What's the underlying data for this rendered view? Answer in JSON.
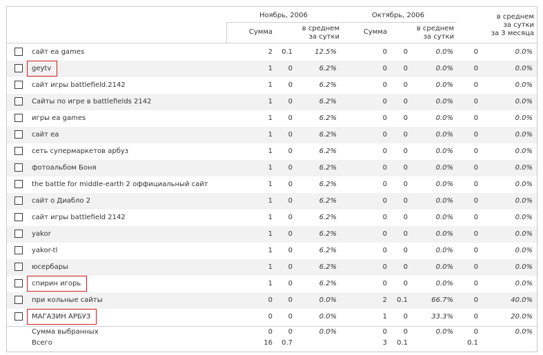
{
  "header": {
    "period1": "Ноябрь, 2006",
    "period2": "Октябрь, 2006",
    "sum_label": "Сумма",
    "avg_line1": "в среднем",
    "avg_line2": "за сутки",
    "q_line1": "в среднем",
    "q_line2": "за сутки",
    "q_line3": "за 3 месяца"
  },
  "rows": [
    {
      "keyword": "сайт ea games",
      "n_sum": "2",
      "n_avg": "0.1",
      "n_pct": "12.5%",
      "o_sum": "0",
      "o_avg": "0",
      "o_pct": "0.0%",
      "q_avg": "0",
      "q_pct": "0.0%",
      "highlighted": false
    },
    {
      "keyword": "geytv",
      "n_sum": "1",
      "n_avg": "0",
      "n_pct": "6.2%",
      "o_sum": "0",
      "o_avg": "0",
      "o_pct": "0.0%",
      "q_avg": "0",
      "q_pct": "0.0%",
      "highlighted": true
    },
    {
      "keyword": "сайт игры battlefield.2142",
      "n_sum": "1",
      "n_avg": "0",
      "n_pct": "6.2%",
      "o_sum": "0",
      "o_avg": "0",
      "o_pct": "0.0%",
      "q_avg": "0",
      "q_pct": "0.0%",
      "highlighted": false
    },
    {
      "keyword": "Сайты по игре в battlefields 2142",
      "n_sum": "1",
      "n_avg": "0",
      "n_pct": "6.2%",
      "o_sum": "0",
      "o_avg": "0",
      "o_pct": "0.0%",
      "q_avg": "0",
      "q_pct": "0.0%",
      "highlighted": false
    },
    {
      "keyword": "игры ea games",
      "n_sum": "1",
      "n_avg": "0",
      "n_pct": "6.2%",
      "o_sum": "0",
      "o_avg": "0",
      "o_pct": "0.0%",
      "q_avg": "0",
      "q_pct": "0.0%",
      "highlighted": false
    },
    {
      "keyword": "сайт ea",
      "n_sum": "1",
      "n_avg": "0",
      "n_pct": "6.2%",
      "o_sum": "0",
      "o_avg": "0",
      "o_pct": "0.0%",
      "q_avg": "0",
      "q_pct": "0.0%",
      "highlighted": false
    },
    {
      "keyword": "сеть супермаркетов арбуз",
      "n_sum": "1",
      "n_avg": "0",
      "n_pct": "6.2%",
      "o_sum": "0",
      "o_avg": "0",
      "o_pct": "0.0%",
      "q_avg": "0",
      "q_pct": "0.0%",
      "highlighted": false
    },
    {
      "keyword": "фотоальбом Боня",
      "n_sum": "1",
      "n_avg": "0",
      "n_pct": "6.2%",
      "o_sum": "0",
      "o_avg": "0",
      "o_pct": "0.0%",
      "q_avg": "0",
      "q_pct": "0.0%",
      "highlighted": false
    },
    {
      "keyword": "the battle for middle-earth 2 оффициальный сайт",
      "n_sum": "1",
      "n_avg": "0",
      "n_pct": "6.2%",
      "o_sum": "0",
      "o_avg": "0",
      "o_pct": "0.0%",
      "q_avg": "0",
      "q_pct": "0.0%",
      "highlighted": false
    },
    {
      "keyword": "сайт о Диабло 2",
      "n_sum": "1",
      "n_avg": "0",
      "n_pct": "6.2%",
      "o_sum": "0",
      "o_avg": "0",
      "o_pct": "0.0%",
      "q_avg": "0",
      "q_pct": "0.0%",
      "highlighted": false
    },
    {
      "keyword": "сайт игры battlefield 2142",
      "n_sum": "1",
      "n_avg": "0",
      "n_pct": "6.2%",
      "o_sum": "0",
      "o_avg": "0",
      "o_pct": "0.0%",
      "q_avg": "0",
      "q_pct": "0.0%",
      "highlighted": false
    },
    {
      "keyword": "yakor",
      "n_sum": "1",
      "n_avg": "0",
      "n_pct": "6.2%",
      "o_sum": "0",
      "o_avg": "0",
      "o_pct": "0.0%",
      "q_avg": "0",
      "q_pct": "0.0%",
      "highlighted": false
    },
    {
      "keyword": "yakor-tl",
      "n_sum": "1",
      "n_avg": "0",
      "n_pct": "6.2%",
      "o_sum": "0",
      "o_avg": "0",
      "o_pct": "0.0%",
      "q_avg": "0",
      "q_pct": "0.0%",
      "highlighted": false
    },
    {
      "keyword": "юсербары",
      "n_sum": "1",
      "n_avg": "0",
      "n_pct": "6.2%",
      "o_sum": "0",
      "o_avg": "0",
      "o_pct": "0.0%",
      "q_avg": "0",
      "q_pct": "0.0%",
      "highlighted": false
    },
    {
      "keyword": "спирин игорь",
      "n_sum": "1",
      "n_avg": "0",
      "n_pct": "6.2%",
      "o_sum": "0",
      "o_avg": "0",
      "o_pct": "0.0%",
      "q_avg": "0",
      "q_pct": "0.0%",
      "highlighted": true
    },
    {
      "keyword": "при кольные сайты",
      "n_sum": "0",
      "n_avg": "0",
      "n_pct": "0.0%",
      "o_sum": "2",
      "o_avg": "0.1",
      "o_pct": "66.7%",
      "q_avg": "0",
      "q_pct": "40.0%",
      "highlighted": false
    },
    {
      "keyword": "МАГАЗИН АРБУЗ",
      "n_sum": "0",
      "n_avg": "0",
      "n_pct": "0.0%",
      "o_sum": "1",
      "o_avg": "0",
      "o_pct": "33.3%",
      "q_avg": "0",
      "q_pct": "20.0%",
      "highlighted": true
    }
  ],
  "footer": {
    "selected": {
      "label": "Сумма выбранных",
      "n_sum": "0",
      "n_avg": "0",
      "n_pct": "0.0%",
      "o_sum": "0",
      "o_avg": "0",
      "o_pct": "0.0%",
      "q_avg": "0",
      "q_pct": "0.0%"
    },
    "total": {
      "label": "Всего",
      "n_sum": "16",
      "n_avg": "0.7",
      "o_sum": "3",
      "o_avg": "0.1",
      "q_avg": "0.1"
    }
  },
  "colors": {
    "highlight_border": "#d0191b",
    "alt_row": "#f2f2f2",
    "grid_line": "#cfcfcf"
  }
}
